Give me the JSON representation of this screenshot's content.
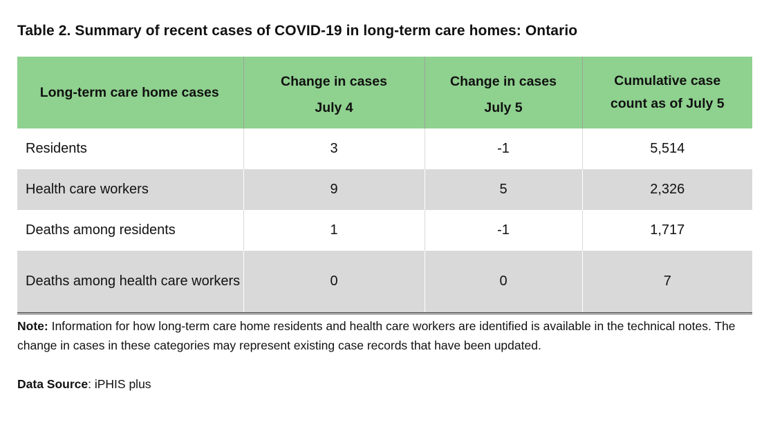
{
  "title": "Table 2. Summary of recent cases of COVID-19 in long-term care homes: Ontario",
  "table": {
    "headers": [
      {
        "lines": [
          "Long-term care home cases"
        ]
      },
      {
        "line1": "Change in cases",
        "line2": "July 4"
      },
      {
        "line1": "Change in cases",
        "line2": "July 5"
      },
      {
        "lines": [
          "Cumulative case",
          "count as of July 5"
        ]
      }
    ],
    "rows": [
      {
        "label": "Residents",
        "values": [
          "3",
          "-1",
          "5,514"
        ]
      },
      {
        "label": "Health care workers",
        "values": [
          "9",
          "5",
          "2,326"
        ]
      },
      {
        "label": "Deaths among residents",
        "values": [
          "1",
          "-1",
          "1,717"
        ]
      },
      {
        "label": "Deaths among health care workers",
        "values": [
          "0",
          "0",
          "7"
        ]
      }
    ]
  },
  "note": {
    "label": "Note:",
    "text": " Information for how long-term care home residents and health care workers are identified is available in the technical notes. The change in cases in these categories may represent existing case records that have been updated."
  },
  "source": {
    "label": "Data Source",
    "text": ": iPHIS plus"
  },
  "colors": {
    "header_bg": "#8fd18f",
    "shaded_row_bg": "#d9d9d9"
  }
}
